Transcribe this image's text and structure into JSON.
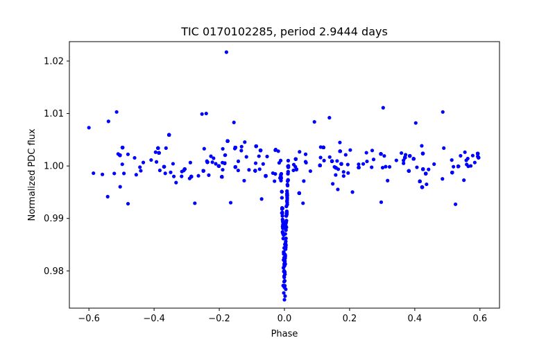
{
  "chart_data": {
    "type": "scatter",
    "title": "TIC 0170102285, period 2.9444 days",
    "xlabel": "Phase",
    "ylabel": "Normalized PDC flux",
    "xlim": [
      -0.66,
      0.66
    ],
    "ylim": [
      0.9729,
      1.0237
    ],
    "x_ticks": [
      {
        "value": -0.6,
        "label": "−0.6"
      },
      {
        "value": -0.4,
        "label": "−0.4"
      },
      {
        "value": -0.2,
        "label": "−0.2"
      },
      {
        "value": 0.0,
        "label": "0.0"
      },
      {
        "value": 0.2,
        "label": "0.2"
      },
      {
        "value": 0.4,
        "label": "0.4"
      },
      {
        "value": 0.6,
        "label": "0.6"
      }
    ],
    "y_ticks": [
      {
        "value": 0.98,
        "label": "0.98"
      },
      {
        "value": 0.99,
        "label": "0.99"
      },
      {
        "value": 1.0,
        "label": "1.00"
      },
      {
        "value": 1.01,
        "label": "1.01"
      },
      {
        "value": 1.02,
        "label": "1.02"
      }
    ],
    "grid": false,
    "marker_color": "#0000ff",
    "phase_range": [
      -0.6,
      0.6
    ],
    "baseline_flux": 1.0,
    "baseline_scatter_range": [
      0.9955,
      1.0045
    ],
    "transit": {
      "center_phase": 0.0,
      "half_width_phase": 0.012,
      "min_flux": 0.9745
    },
    "points": [
      {
        "x": -0.178,
        "y": 1.0217
      },
      {
        "x": -0.515,
        "y": 1.0103
      },
      {
        "x": 0.303,
        "y": 1.0111
      },
      {
        "x": 0.486,
        "y": 1.0103
      },
      {
        "x": -0.54,
        "y": 1.0085
      },
      {
        "x": -0.253,
        "y": 1.0099
      },
      {
        "x": -0.24,
        "y": 1.01
      },
      {
        "x": -0.155,
        "y": 1.0083
      },
      {
        "x": 0.092,
        "y": 1.0084
      },
      {
        "x": 0.138,
        "y": 1.0092
      },
      {
        "x": 0.403,
        "y": 1.0082
      },
      {
        "x": -0.6,
        "y": 1.0073
      },
      {
        "x": -0.275,
        "y": 0.9929
      },
      {
        "x": -0.48,
        "y": 0.9928
      },
      {
        "x": 0.057,
        "y": 0.9929
      },
      {
        "x": 0.297,
        "y": 0.9931
      },
      {
        "x": 0.525,
        "y": 0.9927
      },
      {
        "x": -0.165,
        "y": 0.993
      },
      {
        "x": -0.07,
        "y": 0.9937
      },
      {
        "x": 0.0,
        "y": 0.9745
      },
      {
        "x": 0.002,
        "y": 0.9752
      },
      {
        "x": -0.002,
        "y": 0.9758
      },
      {
        "x": 0.004,
        "y": 0.9765
      },
      {
        "x": -0.004,
        "y": 0.9772
      },
      {
        "x": 0.001,
        "y": 0.9781
      },
      {
        "x": -0.001,
        "y": 0.979
      }
    ]
  }
}
